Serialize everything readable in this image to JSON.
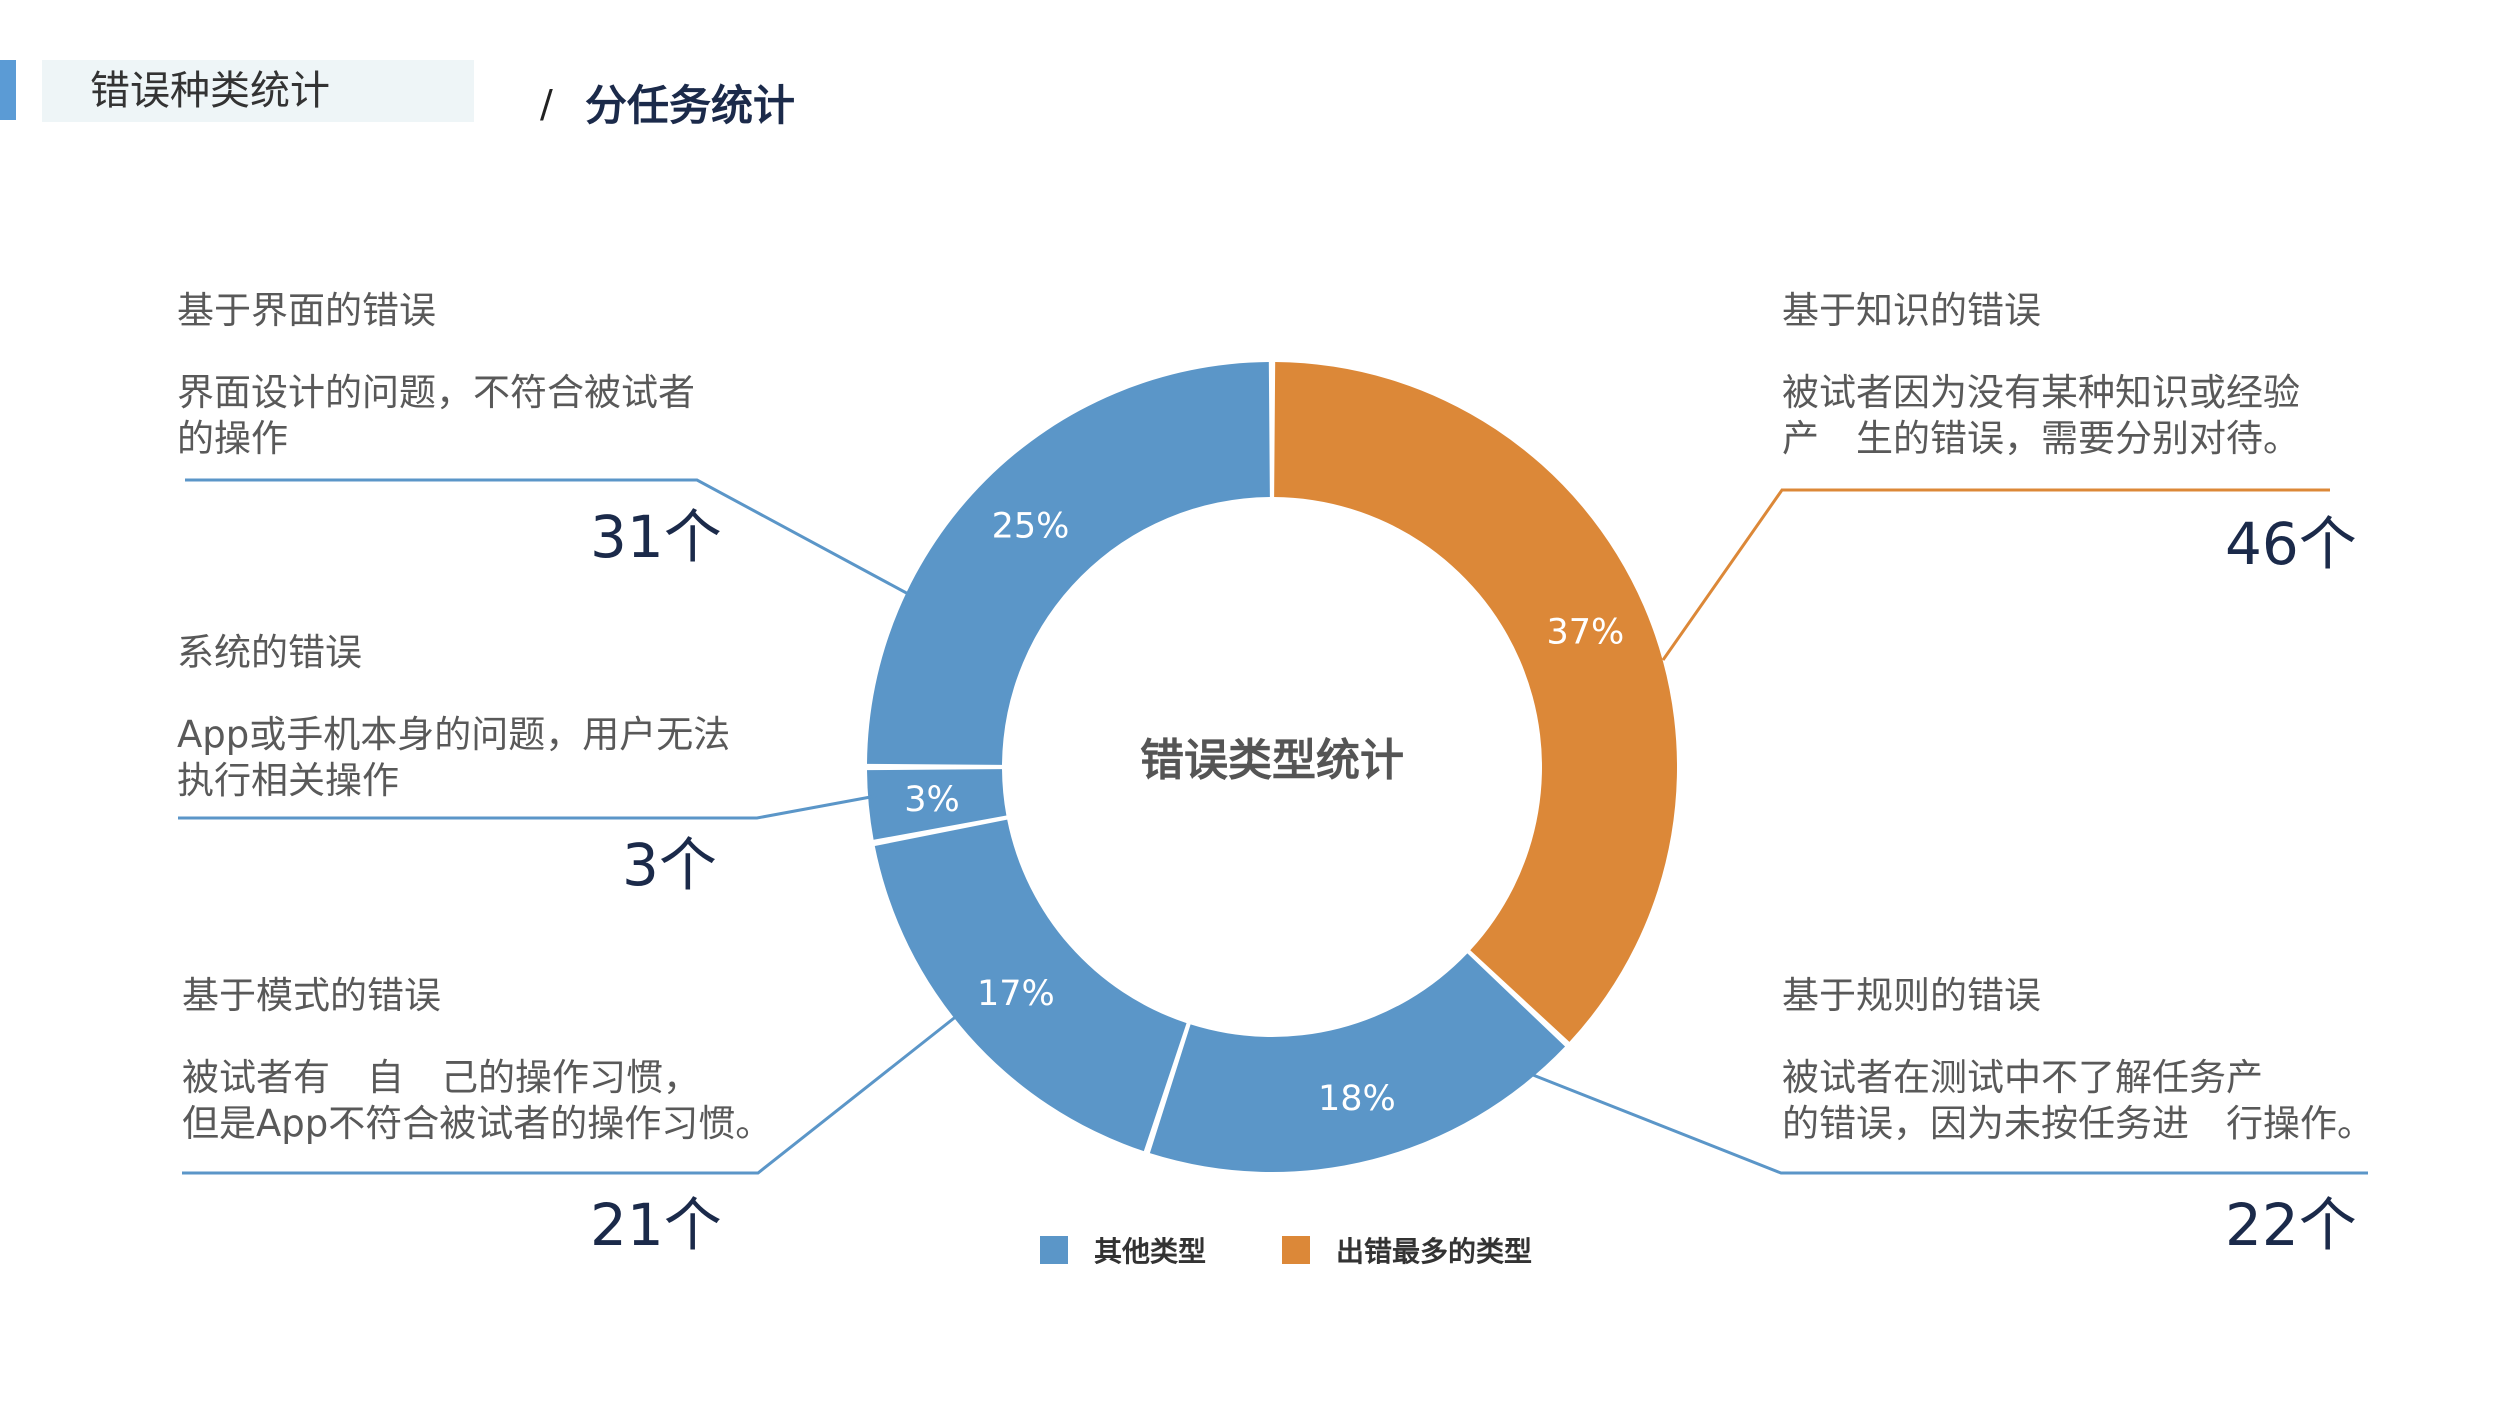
{
  "header": {
    "title": "错误种类统计",
    "separator": "/",
    "subtitle": "分任务统计"
  },
  "colors": {
    "blue": "#5b96c8",
    "orange": "#dc8838",
    "accent": "#5b9bd5"
  },
  "categories": {
    "interface": {
      "title": "基于界面的错误",
      "desc_line1": "界面设计的问题，不符合被试者",
      "desc_line2": "的操作",
      "count": "31个"
    },
    "system": {
      "title": "系统的错误",
      "desc_line1": "App或手机本身的问题，用户无法",
      "desc_line2": "执行相关操作",
      "count": "3个"
    },
    "pattern": {
      "title": "基于模式的错误",
      "desc_line1": "被试者有　自　己的操作习惯，",
      "desc_line2": "但是App不符合被试者的操作习惯。",
      "count": "21个"
    },
    "knowledge": {
      "title": "基于知识的错误",
      "desc_line1": "被试者因为没有某种知识或经验",
      "desc_line2": "产　生的错误，需要分别对待。",
      "count": "46个"
    },
    "rule": {
      "title": "基于规则的错误",
      "desc_line1": "被试者在测试中不了解任务产",
      "desc_line2": "的错误，因为未按任务进　行操作。",
      "count": "22个"
    }
  },
  "chart_data": {
    "type": "pie",
    "donut": true,
    "center_label": "错误类型统计",
    "slices": [
      {
        "category": "knowledge",
        "label": "37%",
        "value": 37,
        "color": "#dc8838"
      },
      {
        "category": "rule",
        "label": "18%",
        "value": 18,
        "color": "#5b96c8"
      },
      {
        "category": "pattern",
        "label": "17%",
        "value": 17,
        "color": "#5b96c8"
      },
      {
        "category": "system",
        "label": "3%",
        "value": 3,
        "color": "#5b96c8"
      },
      {
        "category": "interface",
        "label": "25%",
        "value": 25,
        "color": "#5b96c8"
      }
    ],
    "legend": [
      {
        "label": "其他类型",
        "color": "#5b96c8"
      },
      {
        "label": "出错最多的类型",
        "color": "#dc8838"
      }
    ],
    "legend_position": "bottom"
  }
}
